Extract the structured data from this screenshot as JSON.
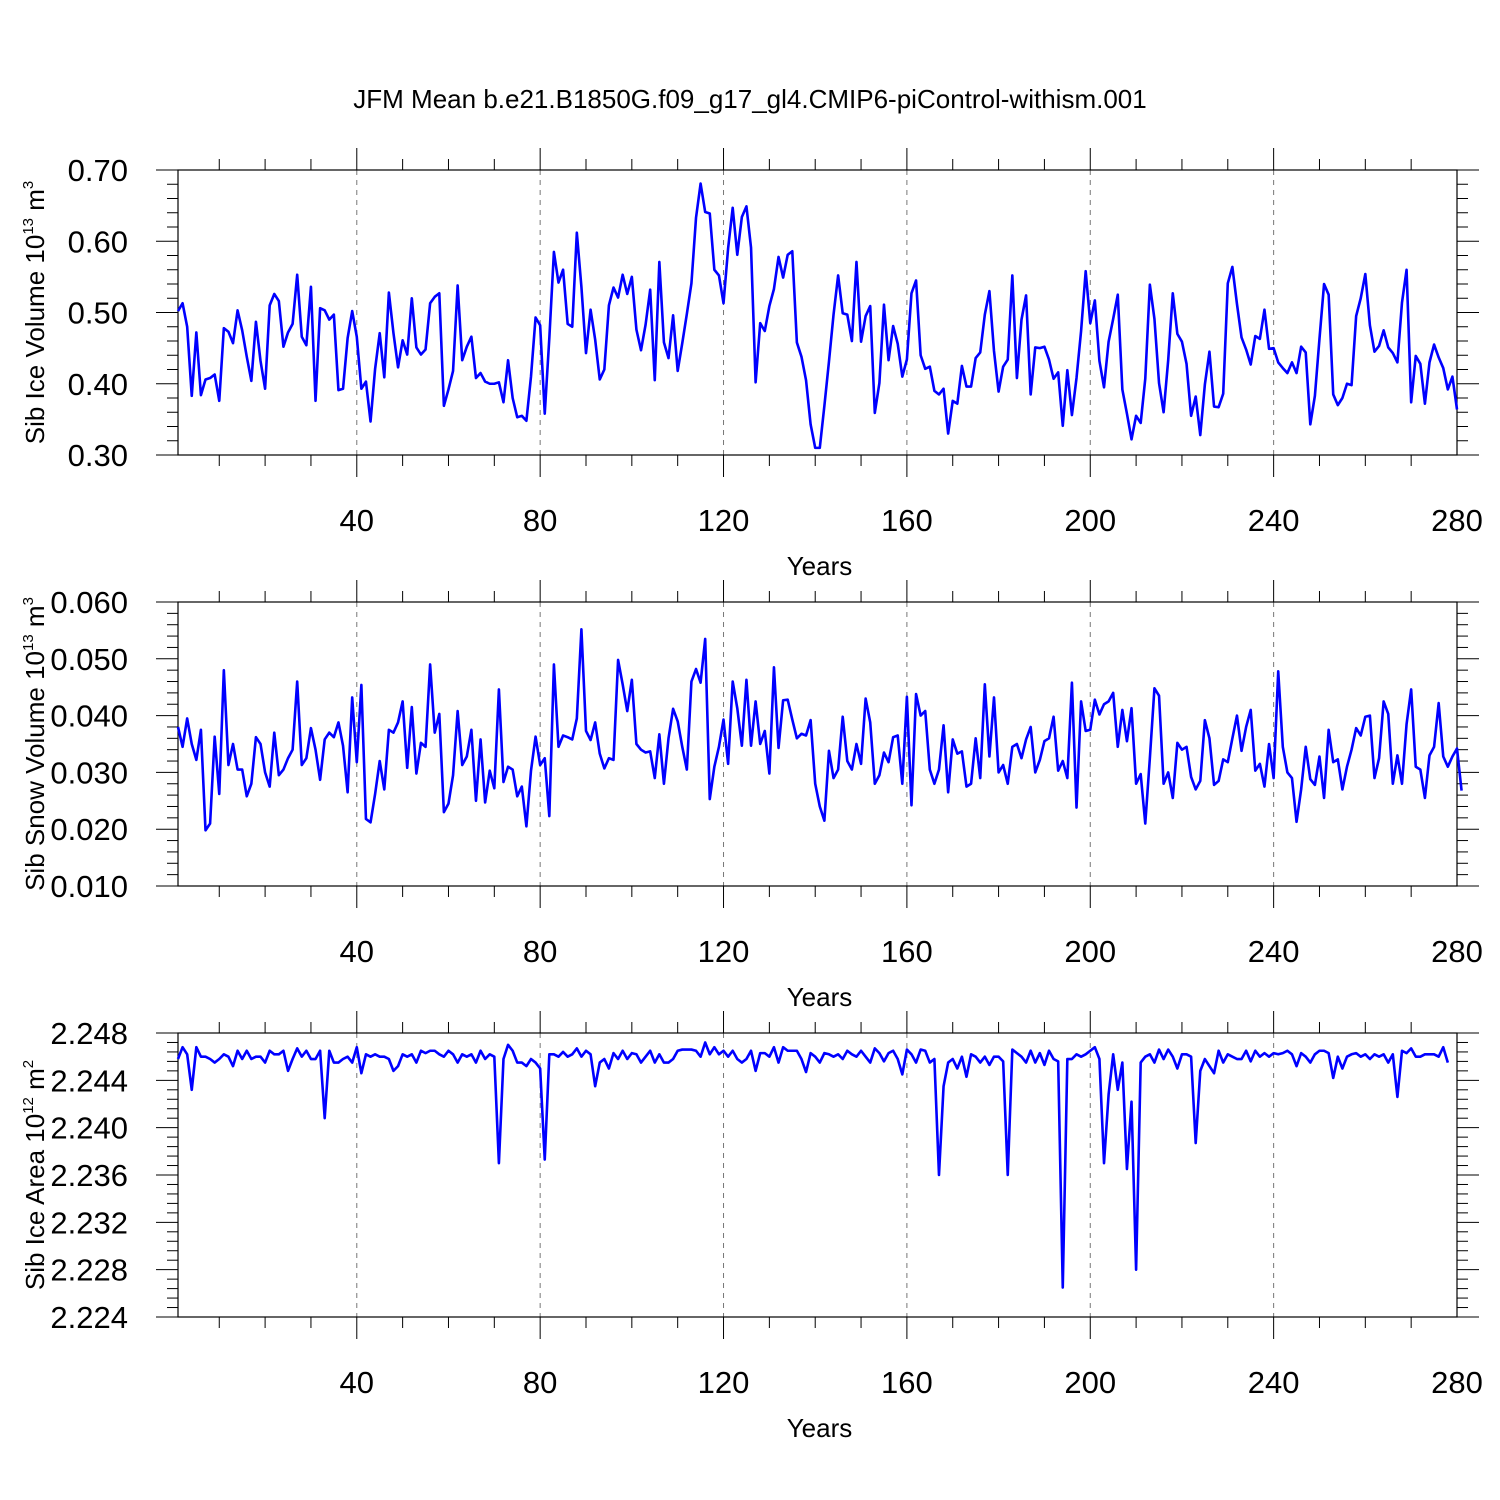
{
  "figure_title": "JFM Mean b.e21.B1850G.f09_g17_gl4.CMIP6-piControl-withism.001",
  "chart_data": [
    {
      "type": "line",
      "ylabel_main": "Sib Ice Volume 10",
      "ylabel_exp": "13",
      "ylabel_unit": " m",
      "ylabel_unit_exp": "3",
      "xlabel": "Years",
      "xlim": [
        1,
        280
      ],
      "ylim": [
        0.3,
        0.7
      ],
      "x_ticks": [
        40,
        80,
        120,
        160,
        200,
        240,
        280
      ],
      "y_ticks": [
        0.3,
        0.4,
        0.5,
        0.6,
        0.7
      ],
      "y_tick_labels": [
        "0.30",
        "0.40",
        "0.50",
        "0.60",
        "0.70"
      ],
      "grid": "dashed vertical at labeled x ticks",
      "series": [
        {
          "color": "#0000ff",
          "x_start": 1,
          "values": [
            0.502,
            0.513,
            0.48,
            0.383,
            0.472,
            0.384,
            0.406,
            0.408,
            0.413,
            0.376,
            0.478,
            0.473,
            0.457,
            0.503,
            0.475,
            0.438,
            0.404,
            0.487,
            0.432,
            0.393,
            0.51,
            0.526,
            0.516,
            0.452,
            0.472,
            0.484,
            0.553,
            0.466,
            0.454,
            0.536,
            0.376,
            0.506,
            0.503,
            0.49,
            0.497,
            0.391,
            0.393,
            0.464,
            0.502,
            0.466,
            0.393,
            0.403,
            0.347,
            0.421,
            0.471,
            0.409,
            0.528,
            0.471,
            0.423,
            0.461,
            0.441,
            0.52,
            0.451,
            0.441,
            0.448,
            0.513,
            0.522,
            0.527,
            0.369,
            0.392,
            0.418,
            0.538,
            0.433,
            0.452,
            0.466,
            0.408,
            0.415,
            0.403,
            0.4,
            0.4,
            0.402,
            0.374,
            0.433,
            0.38,
            0.353,
            0.355,
            0.348,
            0.41,
            0.493,
            0.482,
            0.358,
            0.464,
            0.585,
            0.542,
            0.56,
            0.484,
            0.48,
            0.612,
            0.536,
            0.443,
            0.504,
            0.462,
            0.406,
            0.42,
            0.51,
            0.535,
            0.521,
            0.553,
            0.526,
            0.55,
            0.476,
            0.447,
            0.483,
            0.532,
            0.405,
            0.571,
            0.458,
            0.436,
            0.496,
            0.418,
            0.457,
            0.498,
            0.541,
            0.633,
            0.681,
            0.641,
            0.639,
            0.56,
            0.552,
            0.513,
            0.59,
            0.647,
            0.581,
            0.634,
            0.649,
            0.591,
            0.402,
            0.485,
            0.474,
            0.509,
            0.533,
            0.578,
            0.549,
            0.581,
            0.586,
            0.458,
            0.438,
            0.405,
            0.343,
            0.31,
            0.31,
            0.369,
            0.431,
            0.497,
            0.552,
            0.499,
            0.497,
            0.46,
            0.571,
            0.459,
            0.495,
            0.509,
            0.359,
            0.401,
            0.511,
            0.433,
            0.481,
            0.456,
            0.41,
            0.434,
            0.527,
            0.545,
            0.44,
            0.421,
            0.424,
            0.39,
            0.385,
            0.393,
            0.33,
            0.376,
            0.372,
            0.425,
            0.396,
            0.396,
            0.436,
            0.444,
            0.497,
            0.53,
            0.446,
            0.389,
            0.424,
            0.434,
            0.552,
            0.408,
            0.49,
            0.524,
            0.385,
            0.451,
            0.45,
            0.452,
            0.434,
            0.407,
            0.416,
            0.341,
            0.419,
            0.356,
            0.408,
            0.474,
            0.558,
            0.485,
            0.517,
            0.432,
            0.395,
            0.459,
            0.491,
            0.525,
            0.392,
            0.358,
            0.322,
            0.355,
            0.345,
            0.407,
            0.539,
            0.491,
            0.401,
            0.36,
            0.433,
            0.527,
            0.47,
            0.459,
            0.428,
            0.355,
            0.382,
            0.328,
            0.399,
            0.445,
            0.368,
            0.367,
            0.386,
            0.541,
            0.564,
            0.512,
            0.465,
            0.448,
            0.427,
            0.467,
            0.463,
            0.504,
            0.449,
            0.45,
            0.43,
            0.422,
            0.415,
            0.43,
            0.415,
            0.452,
            0.444,
            0.343,
            0.383,
            0.463,
            0.54,
            0.525,
            0.385,
            0.37,
            0.38,
            0.4,
            0.398,
            0.495,
            0.52,
            0.554,
            0.482,
            0.445,
            0.453,
            0.475,
            0.451,
            0.443,
            0.43,
            0.514,
            0.56,
            0.374,
            0.439,
            0.428,
            0.372,
            0.43,
            0.455,
            0.437,
            0.422,
            0.392,
            0.41,
            0.364
          ]
        }
      ]
    },
    {
      "type": "line",
      "ylabel_main": "Sib Snow Volume 10",
      "ylabel_exp": "13",
      "ylabel_unit": " m",
      "ylabel_unit_exp": "3",
      "xlabel": "Years",
      "xlim": [
        1,
        280
      ],
      "ylim": [
        0.01,
        0.06
      ],
      "x_ticks": [
        40,
        80,
        120,
        160,
        200,
        240,
        280
      ],
      "y_ticks": [
        0.01,
        0.02,
        0.03,
        0.04,
        0.05,
        0.06
      ],
      "y_tick_labels": [
        "0.010",
        "0.020",
        "0.030",
        "0.040",
        "0.050",
        "0.060"
      ],
      "grid": "dashed vertical at labeled x ticks",
      "series": [
        {
          "color": "#0000ff",
          "x_start": 1,
          "values": [
            0.038,
            0.0345,
            0.0395,
            0.035,
            0.0322,
            0.0375,
            0.0198,
            0.021,
            0.0363,
            0.0262,
            0.048,
            0.0313,
            0.035,
            0.0305,
            0.0305,
            0.0258,
            0.028,
            0.0362,
            0.035,
            0.03,
            0.0275,
            0.037,
            0.0295,
            0.0305,
            0.0325,
            0.034,
            0.046,
            0.0313,
            0.0325,
            0.0378,
            0.034,
            0.0287,
            0.0358,
            0.037,
            0.0362,
            0.0388,
            0.0347,
            0.0265,
            0.0432,
            0.0318,
            0.0454,
            0.0218,
            0.0212,
            0.0262,
            0.032,
            0.027,
            0.0375,
            0.037,
            0.0388,
            0.0425,
            0.0308,
            0.0415,
            0.0298,
            0.0352,
            0.0345,
            0.049,
            0.037,
            0.0403,
            0.023,
            0.0245,
            0.0295,
            0.0408,
            0.0313,
            0.0328,
            0.0375,
            0.025,
            0.0358,
            0.0247,
            0.0303,
            0.0272,
            0.0446,
            0.0283,
            0.031,
            0.0305,
            0.0258,
            0.0275,
            0.0205,
            0.0303,
            0.0363,
            0.0313,
            0.0325,
            0.0223,
            0.049,
            0.0345,
            0.0365,
            0.0362,
            0.0358,
            0.0395,
            0.0552,
            0.0373,
            0.0357,
            0.0388,
            0.0333,
            0.0307,
            0.0325,
            0.0322,
            0.0498,
            0.0455,
            0.0408,
            0.0463,
            0.035,
            0.034,
            0.0335,
            0.0337,
            0.029,
            0.0367,
            0.028,
            0.036,
            0.0412,
            0.039,
            0.0345,
            0.0305,
            0.046,
            0.0482,
            0.0458,
            0.0535,
            0.0253,
            0.031,
            0.0345,
            0.0393,
            0.0315,
            0.046,
            0.0413,
            0.0347,
            0.0463,
            0.0347,
            0.0425,
            0.035,
            0.0373,
            0.0298,
            0.0485,
            0.0343,
            0.0427,
            0.0428,
            0.0393,
            0.036,
            0.0368,
            0.0365,
            0.0392,
            0.028,
            0.024,
            0.0215,
            0.0338,
            0.029,
            0.0305,
            0.0398,
            0.032,
            0.0305,
            0.035,
            0.0315,
            0.043,
            0.0388,
            0.028,
            0.0295,
            0.0335,
            0.0318,
            0.0362,
            0.0365,
            0.028,
            0.0433,
            0.0242,
            0.0438,
            0.04,
            0.0408,
            0.0305,
            0.028,
            0.0305,
            0.0383,
            0.0265,
            0.0358,
            0.0333,
            0.0337,
            0.0275,
            0.028,
            0.036,
            0.029,
            0.0455,
            0.0328,
            0.0432,
            0.03,
            0.0313,
            0.028,
            0.0345,
            0.035,
            0.0325,
            0.0358,
            0.038,
            0.03,
            0.0322,
            0.0355,
            0.036,
            0.0398,
            0.0303,
            0.032,
            0.029,
            0.0458,
            0.0238,
            0.0425,
            0.0373,
            0.0375,
            0.0428,
            0.0402,
            0.042,
            0.0425,
            0.044,
            0.0345,
            0.041,
            0.0355,
            0.0413,
            0.028,
            0.0297,
            0.021,
            0.0325,
            0.0448,
            0.0435,
            0.028,
            0.03,
            0.0255,
            0.0352,
            0.034,
            0.0345,
            0.0292,
            0.027,
            0.0285,
            0.0392,
            0.036,
            0.0278,
            0.0285,
            0.0323,
            0.0318,
            0.036,
            0.04,
            0.0338,
            0.038,
            0.041,
            0.0303,
            0.0315,
            0.0275,
            0.035,
            0.029,
            0.0478,
            0.0345,
            0.03,
            0.029,
            0.0213,
            0.027,
            0.0345,
            0.0288,
            0.0278,
            0.0328,
            0.0255,
            0.0375,
            0.0318,
            0.0323,
            0.027,
            0.031,
            0.034,
            0.0378,
            0.0365,
            0.0398,
            0.04,
            0.029,
            0.0325,
            0.0425,
            0.0403,
            0.028,
            0.033,
            0.028,
            0.0385,
            0.0446,
            0.031,
            0.0305,
            0.0255,
            0.033,
            0.0345,
            0.0422,
            0.0328,
            0.031,
            0.0328,
            0.0342,
            0.0268
          ]
        }
      ]
    },
    {
      "type": "line",
      "ylabel_main": "Sib Ice Area 10",
      "ylabel_exp": "12",
      "ylabel_unit": " m",
      "ylabel_unit_exp": "2",
      "xlabel": "Years",
      "xlim": [
        1,
        280
      ],
      "ylim": [
        2.224,
        2.248
      ],
      "x_ticks": [
        40,
        80,
        120,
        160,
        200,
        240,
        280
      ],
      "y_ticks": [
        2.224,
        2.228,
        2.232,
        2.236,
        2.24,
        2.244,
        2.248
      ],
      "y_tick_labels": [
        "2.224",
        "2.228",
        "2.232",
        "2.236",
        "2.240",
        "2.244",
        "2.248"
      ],
      "grid": "dashed vertical at labeled x ticks",
      "series": [
        {
          "color": "#0000ff",
          "x_start": 1,
          "values": [
            2.2458,
            2.2468,
            2.2462,
            2.2432,
            2.2468,
            2.246,
            2.246,
            2.2458,
            2.2455,
            2.2458,
            2.2462,
            2.246,
            2.2452,
            2.2465,
            2.2458,
            2.2465,
            2.2458,
            2.246,
            2.246,
            2.2455,
            2.2465,
            2.2462,
            2.2462,
            2.2465,
            2.2448,
            2.2458,
            2.2467,
            2.246,
            2.2465,
            2.2458,
            2.2458,
            2.2465,
            2.2408,
            2.2465,
            2.2455,
            2.2455,
            2.2458,
            2.246,
            2.2455,
            2.2468,
            2.2446,
            2.2462,
            2.246,
            2.2462,
            2.246,
            2.246,
            2.2458,
            2.2448,
            2.2452,
            2.2462,
            2.246,
            2.2462,
            2.2455,
            2.2465,
            2.2463,
            2.2465,
            2.2465,
            2.2462,
            2.246,
            2.2465,
            2.2462,
            2.2455,
            2.2462,
            2.246,
            2.2462,
            2.2455,
            2.2465,
            2.2458,
            2.2462,
            2.246,
            2.237,
            2.2458,
            2.247,
            2.2465,
            2.2455,
            2.2455,
            2.2452,
            2.2458,
            2.2455,
            2.245,
            2.2373,
            2.2462,
            2.2462,
            2.246,
            2.2464,
            2.246,
            2.2462,
            2.2467,
            2.246,
            2.2465,
            2.2462,
            2.2435,
            2.2455,
            2.2458,
            2.245,
            2.2463,
            2.2458,
            2.2465,
            2.2458,
            2.2463,
            2.2462,
            2.2455,
            2.246,
            2.2465,
            2.2455,
            2.2462,
            2.2455,
            2.2455,
            2.2458,
            2.2465,
            2.2466,
            2.2466,
            2.2466,
            2.2465,
            2.246,
            2.2472,
            2.2462,
            2.2468,
            2.2462,
            2.2465,
            2.246,
            2.2465,
            2.2458,
            2.2455,
            2.2458,
            2.2465,
            2.2448,
            2.2463,
            2.2463,
            2.246,
            2.2468,
            2.2455,
            2.2468,
            2.2465,
            2.2465,
            2.2465,
            2.2458,
            2.2447,
            2.2463,
            2.246,
            2.2455,
            2.2463,
            2.2462,
            2.246,
            2.2462,
            2.2458,
            2.2465,
            2.2462,
            2.246,
            2.2465,
            2.246,
            2.2455,
            2.2467,
            2.2463,
            2.2456,
            2.2463,
            2.2465,
            2.2458,
            2.2445,
            2.2466,
            2.2462,
            2.2455,
            2.2466,
            2.2465,
            2.2455,
            2.2458,
            2.236,
            2.2435,
            2.2455,
            2.2458,
            2.245,
            2.246,
            2.2443,
            2.2462,
            2.246,
            2.2455,
            2.246,
            2.2453,
            2.246,
            2.246,
            2.2456,
            2.236,
            2.2466,
            2.2463,
            2.246,
            2.2455,
            2.2465,
            2.2455,
            2.2463,
            2.2453,
            2.2465,
            2.2458,
            2.2456,
            2.2265,
            2.2458,
            2.2458,
            2.2462,
            2.246,
            2.2462,
            2.2465,
            2.2468,
            2.2458,
            2.237,
            2.2428,
            2.2462,
            2.2432,
            2.2455,
            2.2365,
            2.2422,
            2.228,
            2.2455,
            2.246,
            2.2462,
            2.2455,
            2.2466,
            2.2458,
            2.2466,
            2.246,
            2.245,
            2.2462,
            2.2462,
            2.246,
            2.2387,
            2.2448,
            2.2458,
            2.2452,
            2.2446,
            2.2465,
            2.2455,
            2.2462,
            2.246,
            2.2458,
            2.2458,
            2.2465,
            2.2456,
            2.2465,
            2.246,
            2.2463,
            2.246,
            2.2463,
            2.2462,
            2.2463,
            2.2465,
            2.2462,
            2.2452,
            2.2463,
            2.246,
            2.2455,
            2.2462,
            2.2465,
            2.2465,
            2.2463,
            2.2442,
            2.246,
            2.245,
            2.246,
            2.2462,
            2.2463,
            2.246,
            2.2462,
            2.2458,
            2.2462,
            2.246,
            2.2462,
            2.2455,
            2.2462,
            2.2426,
            2.2465,
            2.2463,
            2.2467,
            2.246,
            2.246,
            2.2462,
            2.2462,
            2.2462,
            2.246,
            2.2468,
            2.2455
          ]
        }
      ]
    }
  ]
}
